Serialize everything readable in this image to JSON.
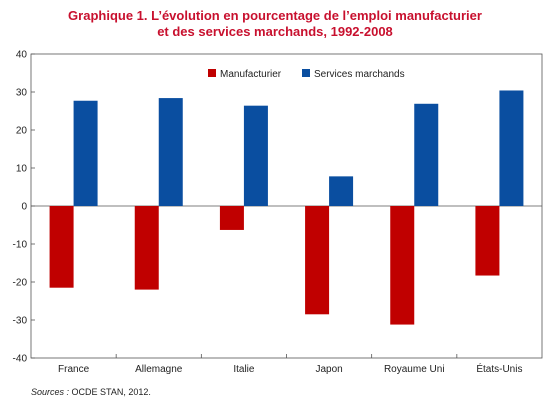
{
  "title_line1": "Graphique 1. L’évolution en pourcentage de l’emploi manufacturier",
  "title_line2": "et des services marchands, 1992-2008",
  "source_label": "Sources :",
  "source_text": " OCDE STAN, 2012.",
  "colors": {
    "manufacturier": "#c00000",
    "services": "#0a4ea0",
    "axis": "#555555"
  },
  "chart_data": {
    "type": "bar",
    "title": "Graphique 1. L’évolution en pourcentage de l’emploi manufacturier et des services marchands, 1992-2008",
    "xlabel": "",
    "ylabel": "",
    "ylim": [
      -40,
      40
    ],
    "yticks": [
      40,
      30,
      20,
      10,
      0,
      -10,
      -20,
      -30,
      -40
    ],
    "grid": false,
    "legend": "top-center",
    "categories": [
      "France",
      "Allemagne",
      "Italie",
      "Japon",
      "Royaume Uni",
      "États-Unis"
    ],
    "series": [
      {
        "name": "Manufacturier",
        "values": [
          -21.5,
          -22,
          -6.3,
          -28.5,
          -31.2,
          -18.3
        ]
      },
      {
        "name": "Services marchands",
        "values": [
          27.7,
          28.4,
          26.4,
          7.8,
          26.9,
          30.4
        ]
      }
    ]
  }
}
